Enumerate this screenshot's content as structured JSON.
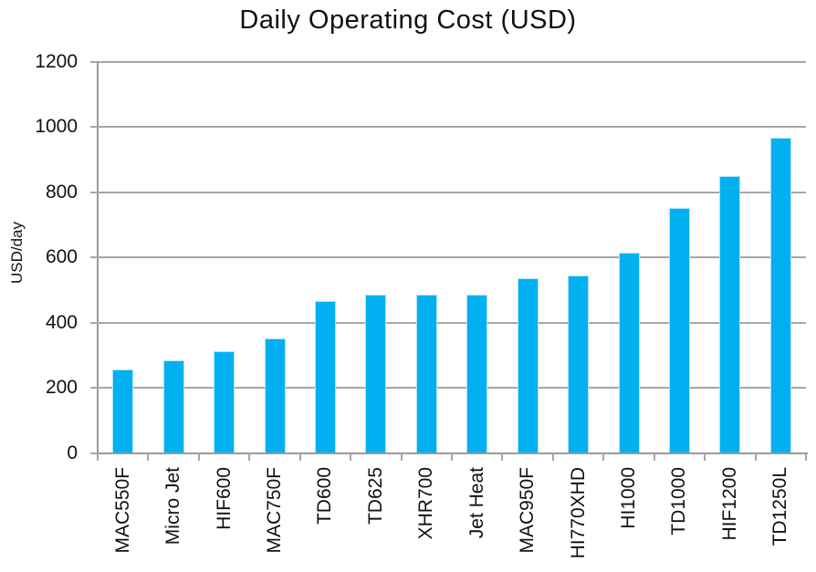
{
  "chart_data": {
    "type": "bar",
    "title": "Daily Operating Cost (USD)",
    "xlabel": "",
    "ylabel": "USD/day",
    "categories": [
      "MAC550F",
      "Micro Jet",
      "HIF600",
      "MAC750F",
      "TD600",
      "TD625",
      "XHR700",
      "Jet Heat",
      "MAC950F",
      "HI770XHD",
      "HI1000",
      "TD1000",
      "HIF1200",
      "TD1250L"
    ],
    "values": [
      256,
      285,
      312,
      352,
      466,
      487,
      487,
      487,
      536,
      545,
      615,
      752,
      850,
      968
    ],
    "ylim": [
      0,
      1200
    ],
    "yticks": [
      0,
      200,
      400,
      600,
      800,
      1000,
      1200
    ],
    "grid": "horizontal",
    "legend": "none",
    "bar_color": "#00b0f0",
    "grid_color": "#a6a6a6",
    "axis_color": "#9a9a9a",
    "text_color": "#111111"
  }
}
